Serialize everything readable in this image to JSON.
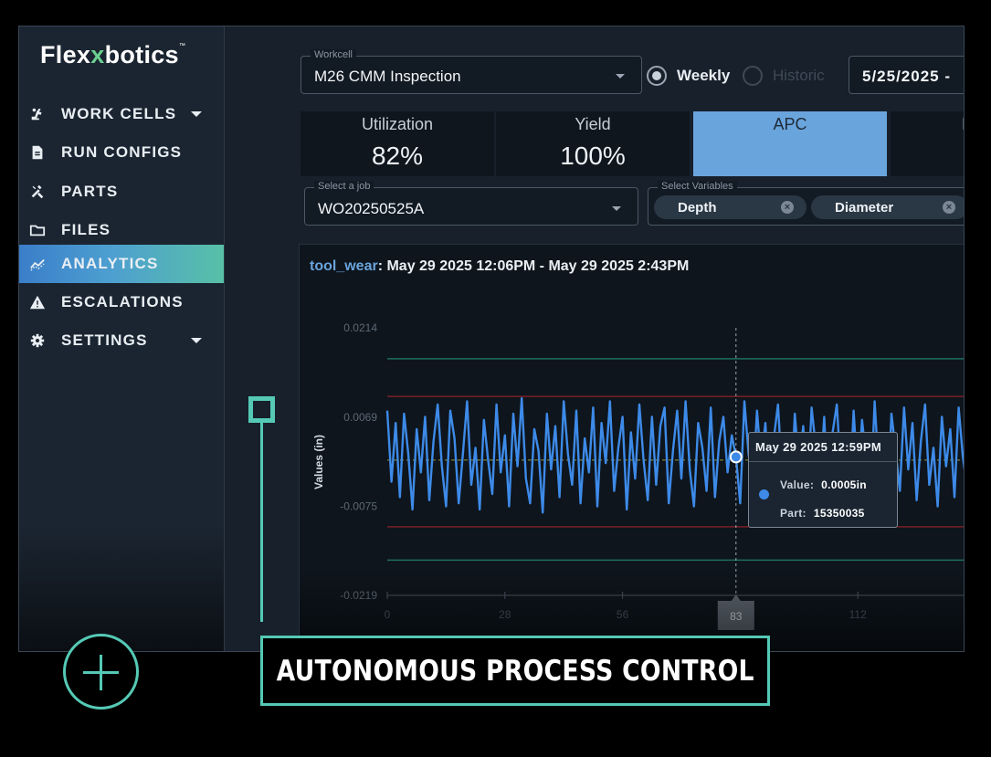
{
  "app": {
    "logo": {
      "pre": "Flex",
      "x": "x",
      "post": "botics",
      "tm": "™"
    }
  },
  "sidebar": {
    "items": [
      {
        "label": "WORK CELLS",
        "icon": "robot-arm-icon",
        "has_caret": true
      },
      {
        "label": "RUN CONFIGS",
        "icon": "document-icon",
        "has_caret": false
      },
      {
        "label": "PARTS",
        "icon": "tools-icon",
        "has_caret": false
      },
      {
        "label": "FILES",
        "icon": "folder-icon",
        "has_caret": false
      },
      {
        "label": "ANALYTICS",
        "icon": "analytics-icon",
        "active": true
      },
      {
        "label": "ESCALATIONS",
        "icon": "warning-icon",
        "has_caret": false
      },
      {
        "label": "SETTINGS",
        "icon": "gear-icon",
        "has_caret": true
      }
    ]
  },
  "workcell": {
    "legend": "Workcell",
    "value": "M26 CMM Inspection"
  },
  "period": {
    "weekly": {
      "label": "Weekly",
      "selected": true
    },
    "historic": {
      "label": "Historic",
      "selected": false
    }
  },
  "date_range": {
    "value": "5/25/2025 -"
  },
  "metrics": [
    {
      "label": "Utilization",
      "value": "82%"
    },
    {
      "label": "Yield",
      "value": "100%"
    },
    {
      "label": "APC",
      "value": "",
      "active": true
    },
    {
      "label": "I",
      "value": ""
    }
  ],
  "job": {
    "legend": "Select a job",
    "value": "WO20250525A"
  },
  "variables": {
    "legend": "Select Variables",
    "chips": [
      {
        "label": "Depth"
      },
      {
        "label": "Diameter"
      }
    ]
  },
  "chart": {
    "variable": "tool_wear",
    "range": ": May 29 2025 12:06PM - May 29 2025 2:43PM",
    "tooltip": {
      "header": "May 29 2025 12:59PM",
      "value_label": "Value:",
      "value": "0.0005in",
      "part_label": "Part:",
      "part": "15350035"
    },
    "hover_x_label": "83"
  },
  "chart_data": {
    "type": "line",
    "title": "tool_wear: May 29 2025 12:06PM - May 29 2025 2:43PM",
    "ylabel": "Values (in)",
    "xlabel": "",
    "ylim": [
      -0.0219,
      0.0214
    ],
    "yticks": [
      "0.0214",
      "0.0069",
      "-0.0075",
      "-0.0219"
    ],
    "xticks": [
      "0",
      "28",
      "56",
      "112"
    ],
    "xlim": [
      0,
      140
    ],
    "reference_lines": {
      "outer": [
        0.0164,
        -0.0162
      ],
      "inner": [
        0.0103,
        -0.0108
      ],
      "center": 0.0
    },
    "colors": {
      "series": "#3d8ae8",
      "outer": "#1f6f5f",
      "inner": "#7a1f25",
      "center": "#8a8a3a"
    },
    "highlight": {
      "x": 83,
      "y": 0.0005
    },
    "series": [
      {
        "values": [
          0.008,
          -0.0035,
          0.006,
          -0.006,
          0.0075,
          0.001,
          -0.008,
          0.005,
          -0.002,
          0.007,
          -0.0065,
          0.003,
          0.009,
          -0.001,
          -0.0075,
          0.008,
          0.0035,
          -0.007,
          0.001,
          0.0095,
          -0.004,
          0.002,
          -0.008,
          0.0065,
          0.0,
          -0.0055,
          0.009,
          -0.002,
          0.004,
          -0.0075,
          0.0075,
          -0.001,
          0.01,
          -0.003,
          -0.007,
          0.005,
          0.0015,
          -0.0085,
          0.0075,
          -0.0015,
          0.0055,
          -0.006,
          0.0095,
          0.001,
          -0.004,
          0.008,
          -0.007,
          0.0035,
          -0.002,
          0.0085,
          -0.0075,
          0.006,
          -0.0005,
          0.0095,
          -0.005,
          0.002,
          0.007,
          -0.008,
          0.0045,
          -0.003,
          0.009,
          0.0,
          -0.0065,
          0.007,
          -0.004,
          0.0055,
          0.0085,
          -0.007,
          0.0015,
          0.008,
          -0.003,
          0.0095,
          -0.0015,
          -0.0075,
          0.006,
          0.002,
          -0.005,
          0.0085,
          -0.006,
          0.003,
          0.007,
          -0.002,
          0.004,
          0.0005,
          -0.007,
          0.0095,
          0.001,
          -0.0045,
          0.008,
          -0.0005,
          0.006,
          -0.007,
          0.0035,
          0.009,
          -0.003,
          0.0015,
          -0.008,
          0.0075,
          -0.001,
          0.0055,
          -0.006,
          0.0085,
          0.002,
          -0.004,
          0.007,
          -0.0075,
          0.0045,
          0.009,
          -0.0025,
          0.001,
          -0.0065,
          0.008,
          -0.0035,
          0.0065,
          0.0,
          -0.007,
          0.0095,
          -0.002,
          0.004,
          -0.008,
          0.0075,
          0.0015,
          -0.005,
          0.0085,
          -0.0015,
          0.006,
          -0.0065,
          0.003,
          0.009,
          -0.004,
          0.002,
          -0.0075,
          0.007,
          -0.001,
          0.005,
          -0.006,
          0.0085,
          0.0005,
          -0.0045,
          0.0075,
          -0.0025
        ]
      }
    ]
  },
  "overlay": {
    "caption": "AUTONOMOUS PROCESS CONTROL"
  }
}
